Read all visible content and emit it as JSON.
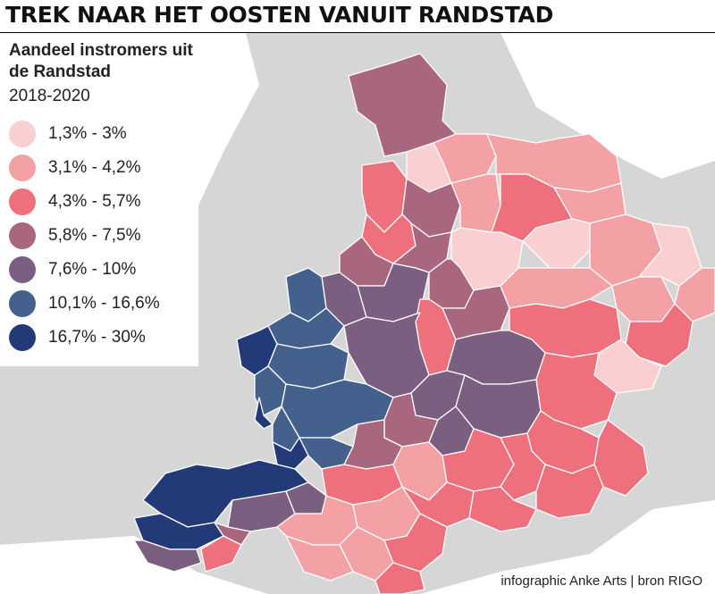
{
  "title": "TREK NAAR HET OOSTEN VANUIT RANDSTAD",
  "legend": {
    "title": "Aandeel instromers uit de Randstad",
    "period": "2018-2020",
    "items": [
      {
        "label": "1,3% - 3%",
        "color": "#f9cfd1"
      },
      {
        "label": "3,1% - 4,2%",
        "color": "#f3a1a5"
      },
      {
        "label": "4,3% - 5,7%",
        "color": "#ee707c"
      },
      {
        "label": "5,8% - 7,5%",
        "color": "#a9677f"
      },
      {
        "label": "7,6% - 10%",
        "color": "#7b5f80"
      },
      {
        "label": "10,1% - 16,6%",
        "color": "#43618c"
      },
      {
        "label": "16,7% - 30%",
        "color": "#233a78"
      }
    ]
  },
  "credit": "infographic Anke Arts | bron RIGO",
  "colors": {
    "water": "#d6d6d6",
    "land_outside": "#ffffff",
    "border": "#ffffff"
  }
}
